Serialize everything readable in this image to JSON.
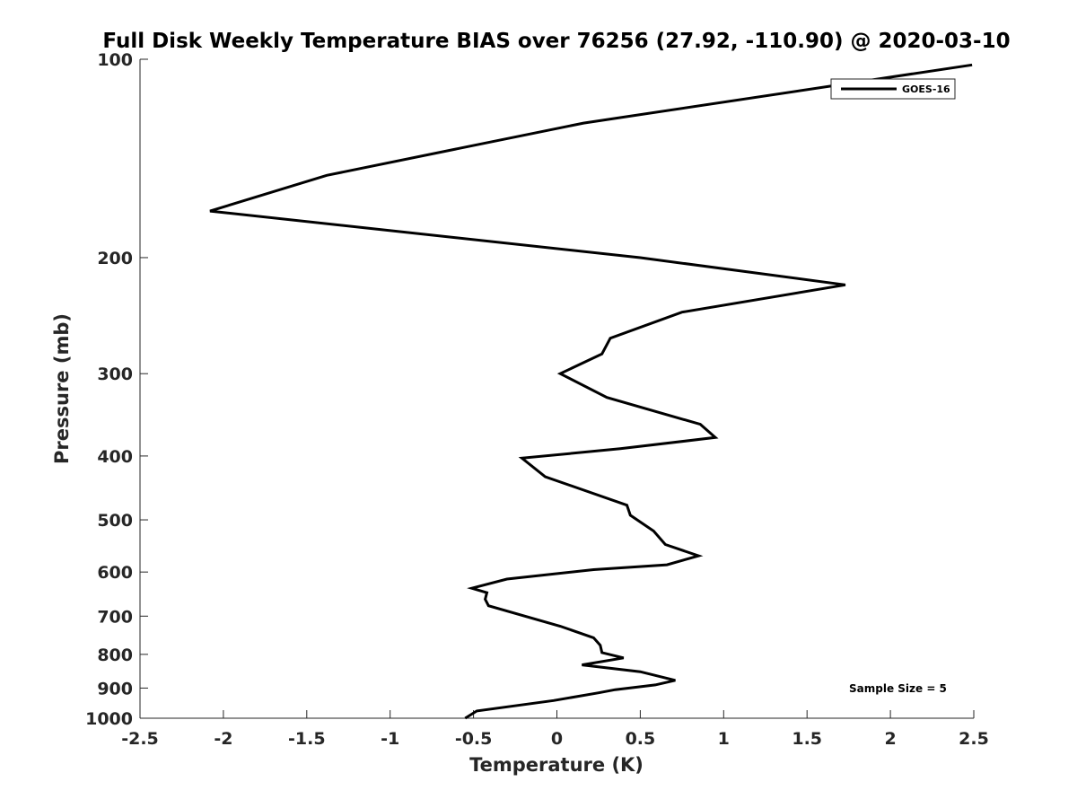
{
  "chart_data": {
    "type": "line",
    "title": "Full Disk Weekly Temperature BIAS over 76256 (27.92, -110.90) @ 2020-03-10",
    "xlabel": "Temperature (K)",
    "ylabel": "Pressure (mb)",
    "xlim": [
      -2.5,
      2.5
    ],
    "ylim": [
      1000,
      100
    ],
    "y_scale": "log",
    "x_ticks": [
      -2.5,
      -2,
      -1.5,
      -1,
      -0.5,
      0,
      0.5,
      1,
      1.5,
      2,
      2.5
    ],
    "x_tick_labels": [
      "-2.5",
      "-2",
      "-1.5",
      "-1",
      "-0.5",
      "0",
      "0.5",
      "1",
      "1.5",
      "2",
      "2.5"
    ],
    "y_ticks": [
      100,
      200,
      300,
      400,
      500,
      600,
      700,
      800,
      900,
      1000
    ],
    "y_tick_labels": [
      "100",
      "200",
      "300",
      "400",
      "500",
      "600",
      "700",
      "800",
      "900",
      "1000"
    ],
    "grid": false,
    "legend_position": "top-right",
    "series": [
      {
        "name": "GOES-16",
        "color": "#000000",
        "x": [
          2.49,
          0.16,
          -1.38,
          -2.08,
          0.5,
          1.73,
          0.75,
          0.32,
          0.27,
          0.02,
          0.3,
          0.86,
          0.95,
          0.38,
          -0.21,
          -0.07,
          0.42,
          0.44,
          0.58,
          0.65,
          0.85,
          0.66,
          0.22,
          -0.3,
          -0.51,
          -0.42,
          -0.43,
          -0.41,
          0.02,
          0.22,
          0.26,
          0.27,
          0.4,
          0.15,
          0.5,
          0.71,
          0.59,
          0.35,
          0.25,
          -0.02,
          -0.48,
          -0.55
        ],
        "y": [
          102,
          125,
          150,
          170,
          200,
          220,
          242,
          265,
          280,
          300,
          326,
          358,
          375,
          390,
          403,
          430,
          475,
          492,
          520,
          545,
          567,
          585,
          595,
          615,
          635,
          645,
          660,
          675,
          725,
          755,
          775,
          795,
          810,
          830,
          850,
          876,
          890,
          905,
          915,
          940,
          975,
          1000
        ]
      }
    ],
    "annotations": [
      {
        "text": "Sample Size = 5"
      }
    ]
  }
}
